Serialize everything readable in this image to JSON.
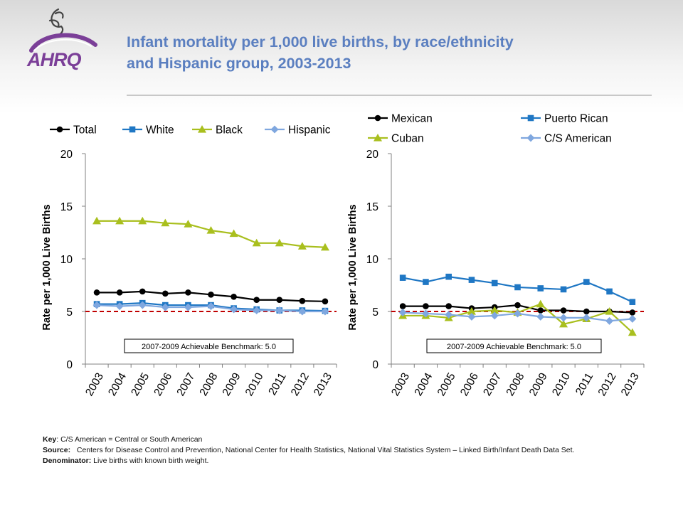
{
  "header": {
    "title_line1": "Infant mortality per 1,000 live births, by race/ethnicity",
    "title_line2": "and Hispanic group, 2003-2013",
    "logo_text": "AHRQ",
    "logo_color": "#7b3f98"
  },
  "chart_data": [
    {
      "type": "line",
      "categories": [
        "2003",
        "2004",
        "2005",
        "2006",
        "2007",
        "2008",
        "2009",
        "2010",
        "2011",
        "2012",
        "2013"
      ],
      "ylabel": "Rate per 1,000 Live Births",
      "ylim": [
        0,
        20
      ],
      "yticks": [
        "0",
        "5",
        "10",
        "15",
        "20"
      ],
      "grid": false,
      "legend": "top",
      "benchmark": {
        "value": 5.0,
        "label": "2007-2009  Achievable Benchmark:  5.0",
        "color": "#c00000"
      },
      "series": [
        {
          "name": "Total",
          "color": "#000000",
          "marker": "circle",
          "values": [
            6.8,
            6.8,
            6.9,
            6.7,
            6.8,
            6.6,
            6.4,
            6.1,
            6.1,
            6.0,
            5.96
          ]
        },
        {
          "name": "White",
          "color": "#1f77c4",
          "marker": "square",
          "values": [
            5.7,
            5.7,
            5.8,
            5.6,
            5.6,
            5.6,
            5.3,
            5.2,
            5.1,
            5.1,
            5.06
          ]
        },
        {
          "name": "Black",
          "color": "#a9bf1e",
          "marker": "triangle",
          "values": [
            13.6,
            13.6,
            13.6,
            13.4,
            13.3,
            12.7,
            12.4,
            11.5,
            11.5,
            11.2,
            11.1
          ]
        },
        {
          "name": "Hispanic",
          "color": "#7fa7df",
          "marker": "diamond",
          "values": [
            5.6,
            5.5,
            5.6,
            5.4,
            5.4,
            5.5,
            5.2,
            5.1,
            5.1,
            5.0,
            5.0
          ]
        }
      ]
    },
    {
      "type": "line",
      "categories": [
        "2003",
        "2004",
        "2005",
        "2006",
        "2007",
        "2008",
        "2009",
        "2010",
        "2011",
        "2012",
        "2013"
      ],
      "ylabel": "Rate per 1,000 Live Births",
      "ylim": [
        0,
        20
      ],
      "yticks": [
        "0",
        "5",
        "10",
        "15",
        "20"
      ],
      "grid": false,
      "legend": "top",
      "benchmark": {
        "value": 5.0,
        "label": "2007-2009  Achievable Benchmark:  5.0",
        "color": "#c00000"
      },
      "series": [
        {
          "name": "Mexican",
          "color": "#000000",
          "marker": "circle",
          "values": [
            5.5,
            5.5,
            5.5,
            5.3,
            5.4,
            5.6,
            5.1,
            5.1,
            5.0,
            5.0,
            4.9
          ]
        },
        {
          "name": "Puerto Rican",
          "color": "#1f77c4",
          "marker": "square",
          "values": [
            8.2,
            7.8,
            8.3,
            8.0,
            7.7,
            7.3,
            7.2,
            7.1,
            7.8,
            6.9,
            5.9
          ]
        },
        {
          "name": "Cuban",
          "color": "#a9bf1e",
          "marker": "triangle",
          "values": [
            4.6,
            4.6,
            4.4,
            5.0,
            5.1,
            4.9,
            5.7,
            3.8,
            4.3,
            5.0,
            3.0
          ]
        },
        {
          "name": "C/S American",
          "color": "#7fa7df",
          "marker": "diamond",
          "values": [
            4.9,
            4.8,
            4.7,
            4.5,
            4.6,
            4.8,
            4.5,
            4.4,
            4.4,
            4.1,
            4.3
          ]
        }
      ]
    }
  ],
  "notes": {
    "key_label": "Key",
    "key_text": ": C/S American = Central or South American",
    "source_label": "Source:",
    "source_text": "Centers for Disease Control and Prevention, National Center for Health Statistics, National Vital Statistics System – Linked Birth/Infant Death Data Set.",
    "denominator_label": "Denominator:",
    "denominator_text": "Live births with known birth weight."
  }
}
